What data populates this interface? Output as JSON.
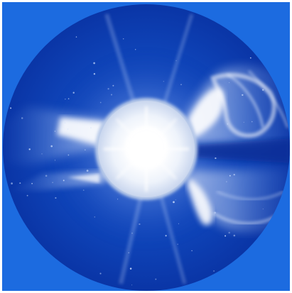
{
  "image": {
    "subject": "coronagraph-view",
    "colors": {
      "field": "#1c6be0",
      "disk": "#0d3fb5",
      "disk_edge": "#0a35a8",
      "streamer": "#e8f1ff",
      "occulter": "#e9f0fb",
      "sun_core": "#ffffff",
      "star": "#cfe0ff"
    }
  }
}
